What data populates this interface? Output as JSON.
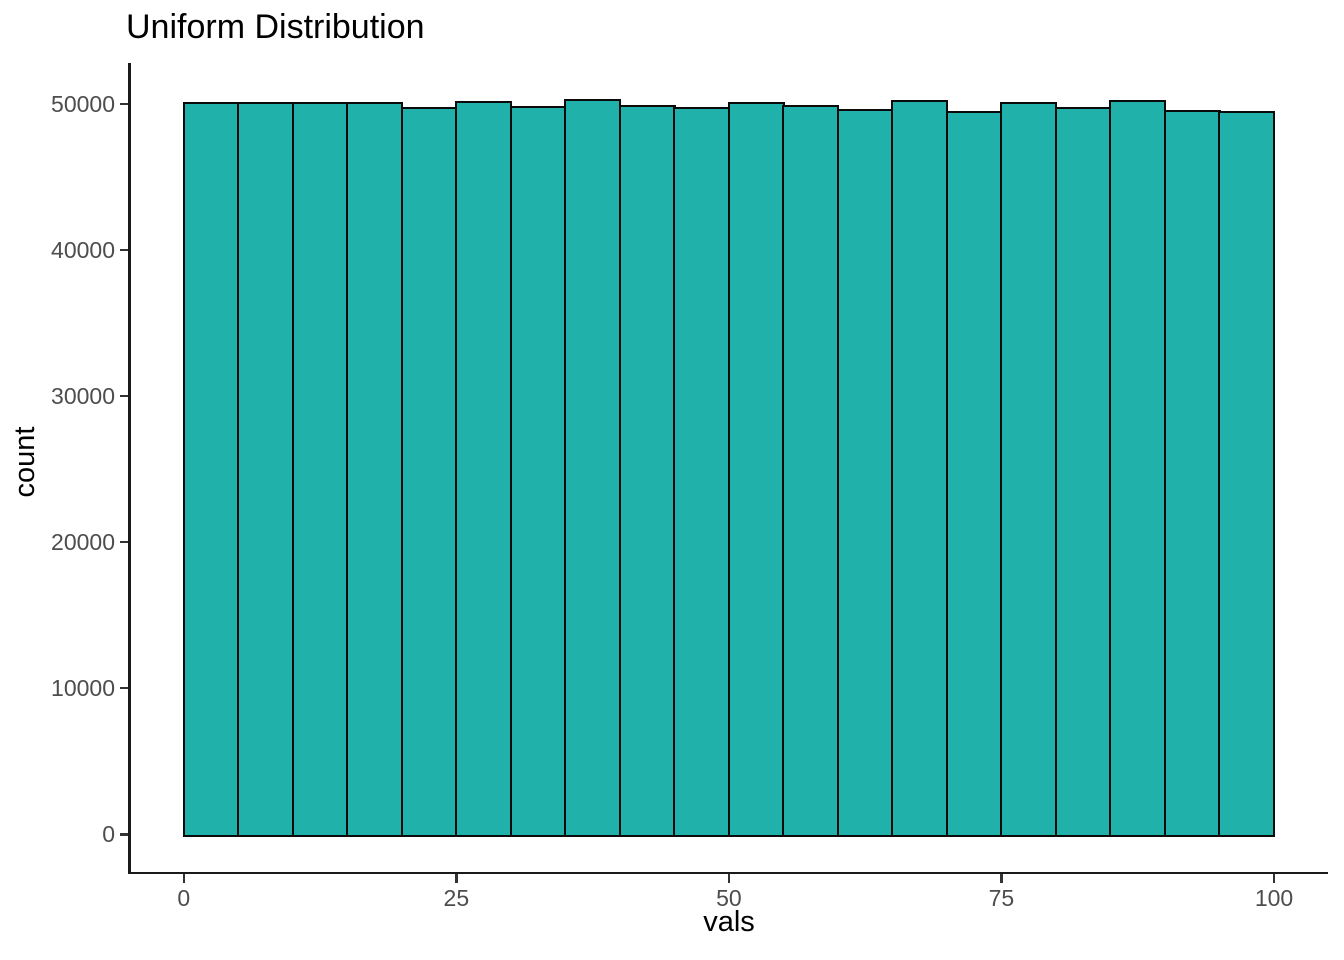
{
  "chart_data": {
    "type": "bar",
    "subtype": "histogram",
    "title": "Uniform Distribution",
    "xlabel": "vals",
    "ylabel": "count",
    "bin_width": 5,
    "bin_starts": [
      0,
      5,
      10,
      15,
      20,
      25,
      30,
      35,
      40,
      45,
      50,
      55,
      60,
      65,
      70,
      75,
      80,
      85,
      90,
      95
    ],
    "values": [
      50050,
      50050,
      50050,
      50020,
      49700,
      50140,
      49750,
      50250,
      49840,
      49740,
      50060,
      49820,
      49590,
      50210,
      49450,
      50030,
      49700,
      50180,
      49520,
      49450
    ],
    "x_ticks": [
      0,
      25,
      50,
      75,
      100
    ],
    "y_ticks": [
      0,
      10000,
      20000,
      30000,
      40000,
      50000
    ],
    "xlim": [
      -5,
      105
    ],
    "ylim": [
      -2650,
      52850
    ],
    "grid": false,
    "legend": false,
    "colors": {
      "bar_fill": "#20B2AA",
      "bar_stroke": "#0a0a0a",
      "axis_line": "#1a1a1a",
      "tick_mark": "#333333",
      "tick_label": "#4d4d4d",
      "title": "#000000"
    }
  }
}
